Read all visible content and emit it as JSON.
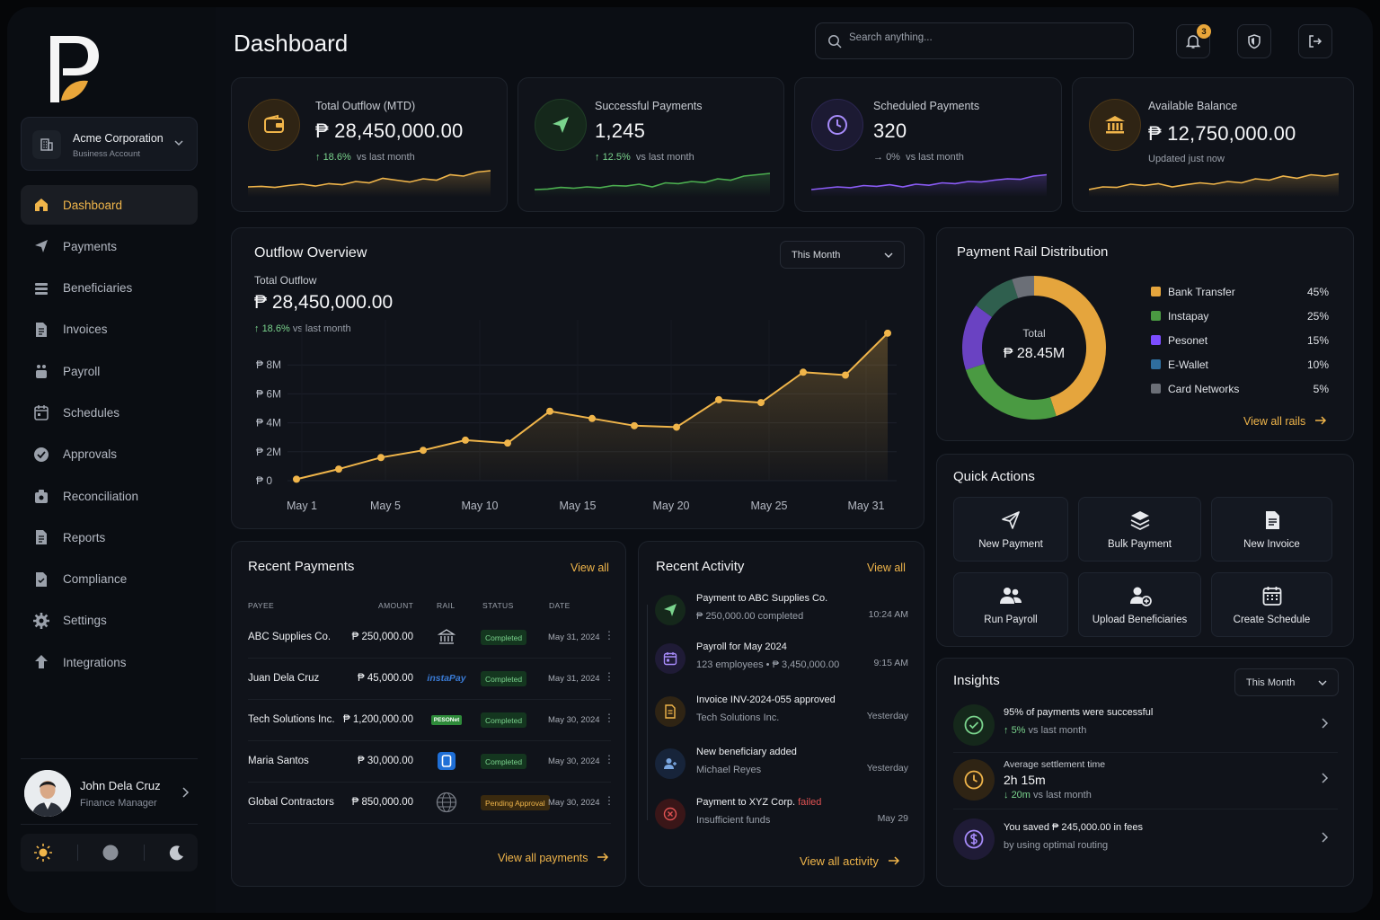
{
  "colors": {
    "accent": "#f0b54a",
    "green": "#4caf50",
    "purple": "#7c4dff",
    "blue": "#2f6e9e",
    "gray": "#6b6f77",
    "red": "#e05252"
  },
  "sidebar": {
    "org_name": "Acme Corporation",
    "org_type": "Business Account",
    "items": [
      {
        "label": "Dashboard",
        "icon": "home-icon"
      },
      {
        "label": "Payments",
        "icon": "send-icon"
      },
      {
        "label": "Beneficiaries",
        "icon": "beneficiaries-icon"
      },
      {
        "label": "Invoices",
        "icon": "invoice-icon"
      },
      {
        "label": "Payroll",
        "icon": "payroll-icon"
      },
      {
        "label": "Schedules",
        "icon": "calendar-icon"
      },
      {
        "label": "Approvals",
        "icon": "check-circle-icon"
      },
      {
        "label": "Reconciliation",
        "icon": "reconciliation-icon"
      },
      {
        "label": "Reports",
        "icon": "report-icon"
      },
      {
        "label": "Compliance",
        "icon": "compliance-icon"
      },
      {
        "label": "Settings",
        "icon": "gear-icon"
      },
      {
        "label": "Integrations",
        "icon": "integrations-icon"
      }
    ],
    "user": {
      "name": "John Dela Cruz",
      "role": "Finance Manager"
    }
  },
  "header": {
    "title": "Dashboard",
    "search_placeholder": "Search anything...",
    "notifications": "3"
  },
  "kpis": [
    {
      "label": "Total Outflow (MTD)",
      "value": "₱ 28,450,000.00",
      "delta": "18.6%",
      "delta_text": "vs last month",
      "color": "#f0b54a",
      "trend": [
        0.3,
        0.32,
        0.28,
        0.35,
        0.4,
        0.33,
        0.42,
        0.38,
        0.5,
        0.45,
        0.62,
        0.55,
        0.48,
        0.6,
        0.55,
        0.75,
        0.7,
        0.85,
        0.9
      ]
    },
    {
      "label": "Successful Payments",
      "value": "1,245",
      "delta": "12.5%",
      "delta_text": "vs last month",
      "color": "#4caf50",
      "trend": [
        0.2,
        0.22,
        0.28,
        0.25,
        0.3,
        0.27,
        0.35,
        0.33,
        0.4,
        0.3,
        0.45,
        0.42,
        0.5,
        0.46,
        0.6,
        0.55,
        0.7,
        0.75,
        0.8
      ]
    },
    {
      "label": "Scheduled Payments",
      "value": "320",
      "delta": "0%",
      "delta_text": "vs last month",
      "color": "#8b5cf6",
      "trend": [
        0.2,
        0.25,
        0.3,
        0.27,
        0.35,
        0.32,
        0.38,
        0.3,
        0.4,
        0.36,
        0.45,
        0.42,
        0.5,
        0.48,
        0.55,
        0.6,
        0.58,
        0.7,
        0.75
      ]
    },
    {
      "label": "Available Balance",
      "value": "₱ 12,750,000.00",
      "sub": "Updated just now",
      "color": "#f0b54a",
      "trend": [
        0.2,
        0.3,
        0.28,
        0.4,
        0.35,
        0.42,
        0.3,
        0.38,
        0.45,
        0.4,
        0.5,
        0.45,
        0.6,
        0.55,
        0.7,
        0.62,
        0.75,
        0.7,
        0.78
      ]
    }
  ],
  "outflow": {
    "title": "Outflow Overview",
    "range": "This Month",
    "label": "Total Outflow",
    "value": "₱ 28,450,000.00",
    "delta": "18.6%",
    "delta_text": "vs last month"
  },
  "chart_data": {
    "type": "area",
    "x": [
      "May 1",
      "May 3",
      "May 5",
      "May 7",
      "May 10",
      "May 12",
      "May 15",
      "May 17",
      "May 19",
      "May 20",
      "May 22",
      "May 24",
      "May 26",
      "May 28",
      "May 31"
    ],
    "values": [
      0.1,
      0.8,
      1.6,
      2.1,
      2.8,
      2.6,
      4.8,
      4.3,
      3.8,
      3.7,
      5.6,
      5.4,
      7.5,
      7.3,
      10.2
    ],
    "ylim": [
      0,
      10.5
    ],
    "ytick_labels": [
      "₱ 0",
      "₱ 2M",
      "₱ 4M",
      "₱ 6M",
      "₱ 8M"
    ],
    "xtick_labels": [
      "May 1",
      "May 5",
      "May 10",
      "May 15",
      "May 20",
      "May 25",
      "May 31"
    ],
    "grid": true,
    "color": "#f0b54a"
  },
  "rails": {
    "title": "Payment Rail Distribution",
    "total_label": "Total",
    "total_value": "₱ 28.45M",
    "view_all": "View all rails",
    "items": [
      {
        "name": "Bank Transfer",
        "pct": "45%",
        "value": 45,
        "color": "#e5a53d"
      },
      {
        "name": "Instapay",
        "pct": "25%",
        "value": 25,
        "color": "#4a9a42"
      },
      {
        "name": "Pesonet",
        "pct": "15%",
        "value": 15,
        "color": "#6a42c2"
      },
      {
        "name": "E-Wallet",
        "pct": "10%",
        "value": 10,
        "color": "#2f5f4e"
      },
      {
        "name": "Card Networks",
        "pct": "5%",
        "value": 5,
        "color": "#6b6f77"
      }
    ]
  },
  "payments": {
    "title": "Recent Payments",
    "view_all": "View all",
    "footer": "View all payments",
    "columns": [
      "PAYEE",
      "AMOUNT",
      "RAIL",
      "STATUS",
      "DATE"
    ],
    "rows": [
      {
        "payee": "ABC Supplies Co.",
        "amount": "₱ 250,000.00",
        "rail": "bank-icon",
        "status": "Completed",
        "date": "May 31, 2024"
      },
      {
        "payee": "Juan Dela Cruz",
        "amount": "₱ 45,000.00",
        "rail": "instapay",
        "rail_text": "instaPay",
        "status": "Completed",
        "date": "May 31, 2024"
      },
      {
        "payee": "Tech Solutions Inc.",
        "amount": "₱ 1,200,000.00",
        "rail": "pesonet",
        "rail_text": "PESONet",
        "status": "Completed",
        "date": "May 30, 2024"
      },
      {
        "payee": "Maria Santos",
        "amount": "₱ 30,000.00",
        "rail": "wallet-icon",
        "status": "Completed",
        "date": "May 30, 2024"
      },
      {
        "payee": "Global Contractors",
        "amount": "₱ 850,000.00",
        "rail": "globe-icon",
        "status": "Pending Approval",
        "date": "May 30, 2024"
      }
    ]
  },
  "activity": {
    "title": "Recent Activity",
    "view_all": "View all",
    "footer": "View all activity",
    "items": [
      {
        "title": "Payment to ABC Supplies Co.",
        "sub": "₱ 250,000.00 completed",
        "time": "10:24 AM",
        "icon": "send-icon"
      },
      {
        "title": "Payroll for May 2024",
        "sub": "123 employees • ₱ 3,450,000.00",
        "time": "9:15 AM",
        "icon": "calendar-icon"
      },
      {
        "title": "Invoice INV-2024-055 approved",
        "sub": "Tech Solutions Inc.",
        "time": "Yesterday",
        "icon": "invoice-icon"
      },
      {
        "title": "New beneficiary added",
        "sub": "Michael Reyes",
        "time": "Yesterday",
        "icon": "user-add-icon"
      },
      {
        "title": "Payment to XYZ Corp.",
        "title_status": "failed",
        "sub": "Insufficient funds",
        "time": "May 29",
        "icon": "error-icon"
      }
    ]
  },
  "quick_actions": {
    "title": "Quick Actions",
    "items": [
      {
        "label": "New Payment",
        "icon": "send-icon"
      },
      {
        "label": "Bulk Payment",
        "icon": "layers-icon"
      },
      {
        "label": "New Invoice",
        "icon": "invoice-icon"
      },
      {
        "label": "Run Payroll",
        "icon": "users-icon"
      },
      {
        "label": "Upload Beneficiaries",
        "icon": "user-add-icon"
      },
      {
        "label": "Create Schedule",
        "icon": "calendar-icon"
      }
    ]
  },
  "insights": {
    "title": "Insights",
    "range": "This Month",
    "items": [
      {
        "title": "95% of payments were successful",
        "sub_delta": "5%",
        "sub_text": "vs last month",
        "icon": "check-circle-icon"
      },
      {
        "small": "Average settlement time",
        "value": "2h 15m",
        "sub_delta": "20m",
        "sub_text": "vs last month",
        "icon": "clock-icon"
      },
      {
        "title": "You saved ₱ 245,000.00 in fees",
        "sub_text": "by using optimal routing",
        "icon": "dollar-icon"
      }
    ]
  }
}
